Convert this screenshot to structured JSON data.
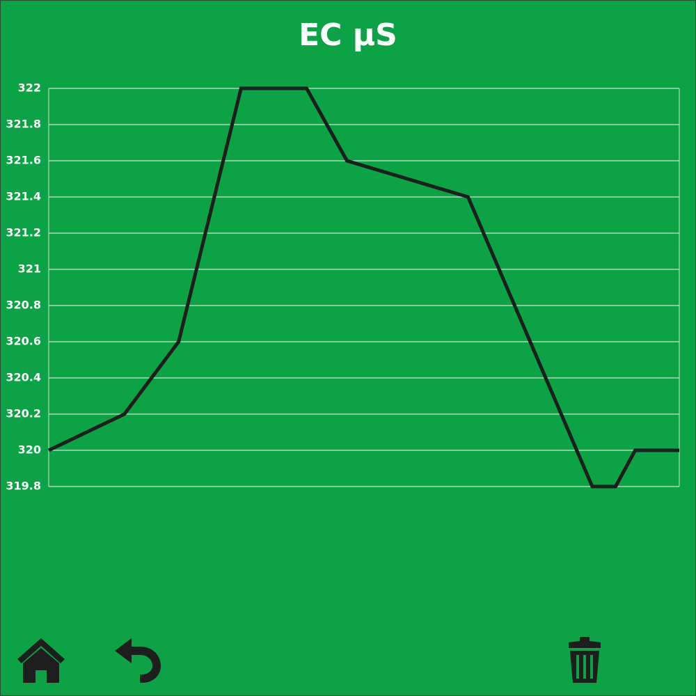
{
  "chart_data": {
    "type": "line",
    "title": "EC µS",
    "x": [
      0,
      12,
      20.6,
      30.5,
      40.9,
      47.3,
      66.5,
      86.2,
      89.9,
      93,
      100
    ],
    "xlim": [
      0,
      100
    ],
    "series": [
      {
        "color": "#1e1e1e",
        "values": [
          320,
          320.2,
          320.6,
          322,
          322,
          321.6,
          321.4,
          319.8,
          319.8,
          320,
          320
        ]
      }
    ],
    "ylim": [
      319.8,
      322
    ],
    "yticks": [
      319.8,
      320,
      320.2,
      320.4,
      320.6,
      320.8,
      321,
      321.2,
      321.4,
      321.6,
      321.8,
      322
    ],
    "grid": true
  }
}
